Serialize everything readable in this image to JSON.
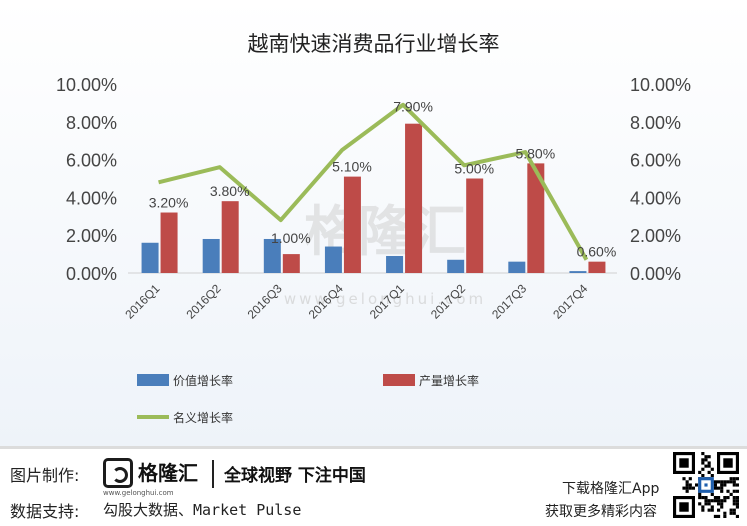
{
  "chart_data": {
    "type": "bar",
    "title": "越南快速消费品行业增长率",
    "categories": [
      "2016Q1",
      "2016Q2",
      "2016Q3",
      "2016Q4",
      "2017Q1",
      "2017Q2",
      "2017Q3",
      "2017Q4"
    ],
    "series": [
      {
        "name": "价值增长率",
        "type": "bar",
        "color": "#4a7ebb",
        "values": [
          1.6,
          1.8,
          1.8,
          1.4,
          0.9,
          0.7,
          0.6,
          0.1
        ]
      },
      {
        "name": "产量增长率",
        "type": "bar",
        "color": "#be4b48",
        "values": [
          3.2,
          3.8,
          1.0,
          5.1,
          7.9,
          5.0,
          5.8,
          0.6
        ],
        "labels": [
          "3.20%",
          "3.80%",
          "1.00%",
          "5.10%",
          "7.90%",
          "5.00%",
          "5.80%",
          "0.60%"
        ]
      },
      {
        "name": "名义增长率",
        "type": "line",
        "color": "#9bbb59",
        "values": [
          4.8,
          5.6,
          2.8,
          6.5,
          8.9,
          5.7,
          6.4,
          0.7
        ]
      }
    ],
    "ylim": [
      0,
      10
    ],
    "y_ticks": [
      "0.00%",
      "2.00%",
      "4.00%",
      "6.00%",
      "8.00%",
      "10.00%"
    ],
    "y2_ticks": [
      "0.00%",
      "2.00%",
      "4.00%",
      "6.00%",
      "8.00%",
      "10.00%"
    ],
    "legend_position": "bottom",
    "grid": false
  },
  "watermark": "格隆汇 www.gelonghui.com",
  "footer": {
    "source_label": "图片制作:",
    "brand_name": "格隆汇",
    "brand_url": "www.gelonghui.com",
    "slogan": "全球视野 下注中国",
    "data_label": "数据支持:",
    "data_value": "勾股大数据、Market Pulse",
    "download": "下载格隆汇App",
    "more": "获取更多精彩内容"
  }
}
